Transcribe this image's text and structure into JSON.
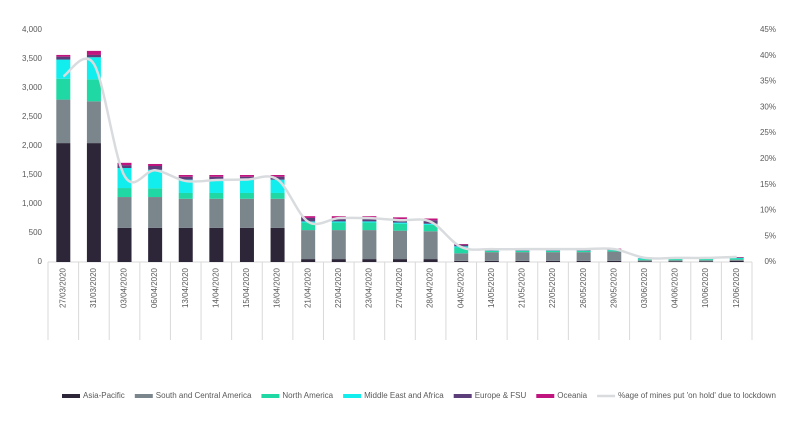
{
  "chart_data": {
    "type": "bar",
    "stacked": true,
    "categories": [
      "27/03/2020",
      "31/03/2020",
      "03/04/2020",
      "06/04/2020",
      "13/04/2020",
      "14/04/2020",
      "15/04/2020",
      "16/04/2020",
      "21/04/2020",
      "22/04/2020",
      "23/04/2020",
      "27/04/2020",
      "28/04/2020",
      "04/05/2020",
      "14/05/2020",
      "21/05/2020",
      "22/05/2020",
      "26/05/2020",
      "29/05/2020",
      "03/06/2020",
      "04/06/2020",
      "10/06/2020",
      "12/06/2020"
    ],
    "series": [
      {
        "name": "Asia-Pacific",
        "color": "#2d2639",
        "values": [
          2050,
          2050,
          590,
          590,
          590,
          590,
          590,
          590,
          50,
          50,
          50,
          50,
          50,
          20,
          20,
          20,
          20,
          20,
          20,
          10,
          10,
          10,
          20
        ]
      },
      {
        "name": "South and Central America",
        "color": "#7a868c",
        "values": [
          750,
          720,
          530,
          530,
          500,
          500,
          500,
          500,
          500,
          500,
          500,
          490,
          480,
          130,
          150,
          150,
          150,
          150,
          160,
          20,
          20,
          20,
          20
        ]
      },
      {
        "name": "North America",
        "color": "#1fd8a4",
        "values": [
          360,
          380,
          155,
          150,
          100,
          100,
          100,
          100,
          130,
          130,
          130,
          120,
          110,
          100,
          20,
          20,
          20,
          20,
          20,
          20,
          20,
          20,
          20
        ]
      },
      {
        "name": "Middle East and Africa",
        "color": "#12eeee",
        "values": [
          330,
          380,
          345,
          320,
          230,
          230,
          230,
          230,
          20,
          20,
          20,
          20,
          20,
          20,
          5,
          5,
          5,
          5,
          5,
          10,
          10,
          10,
          10
        ]
      },
      {
        "name": "Europe & FSU",
        "color": "#5b3e7a",
        "values": [
          50,
          40,
          50,
          65,
          50,
          50,
          50,
          50,
          60,
          60,
          60,
          60,
          60,
          30,
          10,
          10,
          10,
          10,
          15,
          5,
          5,
          5,
          10
        ]
      },
      {
        "name": "Oceania",
        "color": "#c0157e",
        "values": [
          30,
          70,
          40,
          35,
          30,
          30,
          30,
          30,
          30,
          30,
          30,
          30,
          30,
          10,
          5,
          5,
          5,
          5,
          10,
          0,
          0,
          0,
          5
        ]
      },
      {
        "name": "%age of mines put 'on hold' due to lockdown",
        "color": "#d9dcdf",
        "type": "line",
        "axis": "y2",
        "values": [
          36,
          38.4,
          16.7,
          17.8,
          15.7,
          15.9,
          16,
          16,
          7.8,
          8.5,
          8.5,
          8.1,
          7.8,
          2.9,
          2.5,
          2.5,
          2.5,
          2.5,
          2.5,
          0.8,
          0.8,
          0.8,
          1
        ]
      }
    ],
    "ylim": [
      0,
      4000
    ],
    "yticks": [
      0,
      500,
      {
        "value": 1000,
        "label": "1,000"
      },
      {
        "value": 1500,
        "label": "1,500"
      },
      {
        "value": 2000,
        "label": "2,000"
      },
      {
        "value": 2500,
        "label": "2,500"
      },
      {
        "value": 3000,
        "label": "3,000"
      },
      {
        "value": 3500,
        "label": "3,500"
      },
      {
        "value": 4000,
        "label": "4,000"
      }
    ],
    "y2lim": [
      0,
      45
    ],
    "y2ticks": [
      {
        "value": 0,
        "label": "0%"
      },
      {
        "value": 5,
        "label": "5%"
      },
      {
        "value": 10,
        "label": "10%"
      },
      {
        "value": 15,
        "label": "15%"
      },
      {
        "value": 20,
        "label": "20%"
      },
      {
        "value": 25,
        "label": "25%"
      },
      {
        "value": 30,
        "label": "30%"
      },
      {
        "value": 35,
        "label": "35%"
      },
      {
        "value": 40,
        "label": "40%"
      },
      {
        "value": 45,
        "label": "45%"
      }
    ],
    "grid": false,
    "legend": "bottom"
  }
}
